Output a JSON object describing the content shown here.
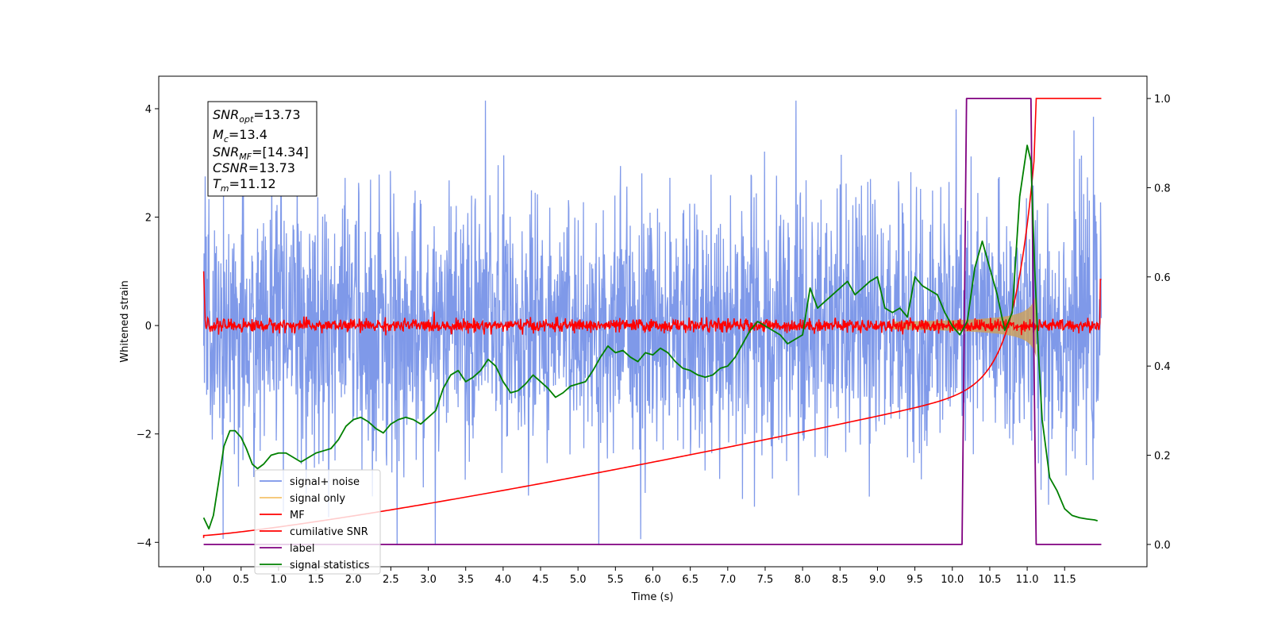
{
  "chart_data": {
    "type": "line",
    "xlabel": "Time (s)",
    "ylabel": "Whitened strain",
    "xlim": [
      -0.6,
      12.6
    ],
    "ylim": [
      -4.45,
      4.6
    ],
    "y2lim": [
      -0.05,
      1.05
    ],
    "x_ticks": [
      "0.0",
      "0.5",
      "1.0",
      "1.5",
      "2.0",
      "2.5",
      "3.0",
      "3.5",
      "4.0",
      "4.5",
      "5.0",
      "5.5",
      "6.0",
      "6.5",
      "7.0",
      "7.5",
      "8.0",
      "8.5",
      "9.0",
      "9.5",
      "10.0",
      "10.5",
      "11.0",
      "11.5"
    ],
    "y_ticks": [
      "4",
      "2",
      "0",
      "−2",
      "−4"
    ],
    "y2_ticks": [
      "1.0",
      "0.8",
      "0.6",
      "0.4",
      "0.2",
      "0.0"
    ],
    "annotation": {
      "snr_opt": {
        "name": "SNR",
        "sub": "opt",
        "value": "=13.73"
      },
      "mc": {
        "name": "M",
        "sub": "c",
        "value": "=13.4"
      },
      "snr_mf": {
        "name": "SNR",
        "sub": "MF",
        "value": "=[14.34]"
      },
      "csnr": {
        "name": "CSNR",
        "sub": "",
        "value": "=13.73"
      },
      "tm": {
        "name": "T",
        "sub": "m",
        "value": "=11.12"
      }
    },
    "legend_position": "lower-left",
    "series": [
      {
        "name": "signal+ noise",
        "color": "#7893e8",
        "kind": "noise",
        "amplitude_std": 1.05,
        "x_range": [
          0.0,
          11.99
        ]
      },
      {
        "name": "signal only",
        "color": "#f5c26b",
        "kind": "chirp",
        "merger_time": 11.12,
        "peak_amplitude": 1.3
      },
      {
        "name": "MF",
        "color": "#ff0000",
        "kind": "noise",
        "amplitude_std": 0.06,
        "x_range": [
          0.0,
          11.99
        ]
      },
      {
        "name": "cumilative SNR",
        "color": "#ff0000",
        "axis": "right",
        "x": [
          0.0,
          1.0,
          2.0,
          3.0,
          4.0,
          5.0,
          6.0,
          7.0,
          7.5,
          8.0,
          8.5,
          9.0,
          9.5,
          10.0,
          10.2,
          10.4,
          10.6,
          10.8,
          10.95,
          11.05,
          11.12,
          11.99
        ],
        "y": [
          0.02,
          0.04,
          0.06,
          0.085,
          0.105,
          0.13,
          0.16,
          0.19,
          0.21,
          0.23,
          0.255,
          0.285,
          0.32,
          0.37,
          0.4,
          0.44,
          0.5,
          0.59,
          0.68,
          0.78,
          1.0,
          1.0
        ]
      },
      {
        "name": "label",
        "color": "#800080",
        "axis": "right",
        "x": [
          0.0,
          10.13,
          10.19,
          11.05,
          11.12,
          11.99
        ],
        "y": [
          0.0,
          0.0,
          1.0,
          1.0,
          0.0,
          0.0
        ]
      },
      {
        "name": "signal statistics",
        "color": "#008000",
        "axis": "right",
        "x": [
          0.0,
          0.07,
          0.13,
          0.2,
          0.27,
          0.35,
          0.42,
          0.5,
          0.57,
          0.65,
          0.72,
          0.8,
          0.9,
          1.0,
          1.1,
          1.2,
          1.3,
          1.4,
          1.5,
          1.6,
          1.7,
          1.8,
          1.9,
          2.0,
          2.1,
          2.2,
          2.3,
          2.4,
          2.5,
          2.6,
          2.7,
          2.8,
          2.9,
          3.0,
          3.1,
          3.2,
          3.3,
          3.4,
          3.5,
          3.6,
          3.7,
          3.8,
          3.9,
          4.0,
          4.1,
          4.2,
          4.3,
          4.4,
          4.5,
          4.6,
          4.7,
          4.8,
          4.9,
          5.0,
          5.1,
          5.2,
          5.3,
          5.4,
          5.5,
          5.6,
          5.7,
          5.8,
          5.9,
          6.0,
          6.1,
          6.2,
          6.3,
          6.4,
          6.5,
          6.6,
          6.7,
          6.8,
          6.9,
          7.0,
          7.1,
          7.2,
          7.3,
          7.4,
          7.5,
          7.6,
          7.7,
          7.8,
          7.9,
          8.0,
          8.1,
          8.2,
          8.3,
          8.4,
          8.5,
          8.6,
          8.7,
          8.8,
          8.9,
          9.0,
          9.1,
          9.2,
          9.3,
          9.4,
          9.5,
          9.6,
          9.7,
          9.8,
          9.9,
          10.0,
          10.1,
          10.2,
          10.3,
          10.4,
          10.5,
          10.6,
          10.7,
          10.8,
          10.9,
          11.0,
          11.05,
          11.1,
          11.15,
          11.2,
          11.3,
          11.4,
          11.5,
          11.6,
          11.7,
          11.8,
          11.9,
          11.94
        ],
        "y": [
          0.06,
          0.035,
          0.065,
          0.14,
          0.22,
          0.255,
          0.255,
          0.24,
          0.215,
          0.18,
          0.17,
          0.18,
          0.2,
          0.205,
          0.205,
          0.195,
          0.185,
          0.195,
          0.205,
          0.21,
          0.215,
          0.235,
          0.265,
          0.28,
          0.285,
          0.275,
          0.26,
          0.25,
          0.27,
          0.28,
          0.285,
          0.28,
          0.27,
          0.285,
          0.3,
          0.35,
          0.38,
          0.39,
          0.365,
          0.375,
          0.39,
          0.415,
          0.4,
          0.365,
          0.34,
          0.345,
          0.36,
          0.38,
          0.365,
          0.35,
          0.33,
          0.34,
          0.355,
          0.36,
          0.365,
          0.39,
          0.42,
          0.445,
          0.43,
          0.435,
          0.42,
          0.41,
          0.43,
          0.425,
          0.44,
          0.43,
          0.41,
          0.395,
          0.39,
          0.38,
          0.375,
          0.38,
          0.395,
          0.4,
          0.42,
          0.45,
          0.48,
          0.5,
          0.49,
          0.48,
          0.47,
          0.45,
          0.46,
          0.47,
          0.575,
          0.53,
          0.545,
          0.56,
          0.575,
          0.59,
          0.56,
          0.575,
          0.59,
          0.6,
          0.53,
          0.52,
          0.53,
          0.51,
          0.6,
          0.58,
          0.57,
          0.56,
          0.52,
          0.49,
          0.47,
          0.5,
          0.62,
          0.68,
          0.62,
          0.56,
          0.48,
          0.52,
          0.78,
          0.895,
          0.86,
          0.62,
          0.43,
          0.28,
          0.15,
          0.12,
          0.08,
          0.065,
          0.06,
          0.057,
          0.055,
          0.053
        ]
      }
    ]
  }
}
